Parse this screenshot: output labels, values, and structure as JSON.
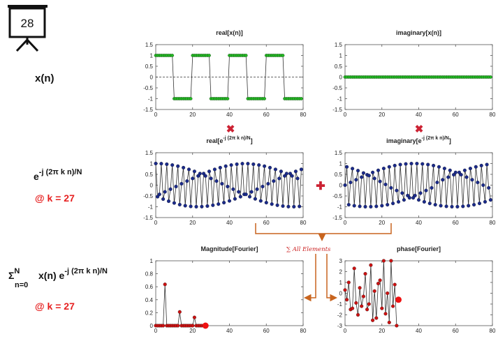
{
  "slide_number": "28",
  "labels": {
    "xn": "x(n)",
    "kernel_base": "e",
    "kernel_exp": "-j (2π k n)/N",
    "k_value": "@ k = 27",
    "sum_symbol": "Σ",
    "sum_sup": "N",
    "sum_sub": "n=0",
    "sum_body": "x(n) e",
    "sum_exp": "-j (2π k n)/N",
    "k_value2": "@ k = 27"
  },
  "operators": {
    "multiply": "✖",
    "add": "✚",
    "sum_note": "∑ All Elements"
  },
  "colors": {
    "green_marker": "#22bb22",
    "blue_marker": "#1a2a8a",
    "red_marker": "#cc1111",
    "red_text": "#e62020",
    "orange_arrow": "#c8641e",
    "line": "#333333"
  },
  "chart_data": [
    {
      "id": "real_x",
      "type": "line",
      "title": "real[x(n)]",
      "xlim": [
        0,
        80
      ],
      "ylim": [
        -1.5,
        1.5
      ],
      "xticks": [
        "0",
        "20",
        "40",
        "60",
        "80"
      ],
      "yticks": [
        "-1.5",
        "-1",
        "-0.5",
        "0",
        "0.5",
        "1",
        "1.5"
      ],
      "dashed_zero": true,
      "x_start": 0,
      "x_end": 79,
      "values": [
        1,
        1,
        1,
        1,
        1,
        1,
        1,
        1,
        1,
        1,
        -1,
        -1,
        -1,
        -1,
        -1,
        -1,
        -1,
        -1,
        -1,
        -1,
        1,
        1,
        1,
        1,
        1,
        1,
        1,
        1,
        1,
        1,
        -1,
        -1,
        -1,
        -1,
        -1,
        -1,
        -1,
        -1,
        -1,
        -1,
        1,
        1,
        1,
        1,
        1,
        1,
        1,
        1,
        1,
        1,
        -1,
        -1,
        -1,
        -1,
        -1,
        -1,
        -1,
        -1,
        -1,
        -1,
        1,
        1,
        1,
        1,
        1,
        1,
        1,
        1,
        1,
        1,
        -1,
        -1,
        -1,
        -1,
        -1,
        -1,
        -1,
        -1,
        -1,
        -1
      ]
    },
    {
      "id": "imag_x",
      "type": "line",
      "title": "imaginary[x(n)]",
      "xlim": [
        0,
        80
      ],
      "ylim": [
        -1.5,
        1.5
      ],
      "xticks": [
        "0",
        "20",
        "40",
        "60",
        "80"
      ],
      "yticks": [
        "-1.5",
        "-1",
        "-0.5",
        "0",
        "0.5",
        "1",
        "1.5"
      ],
      "dashed_zero": true,
      "x_start": 0,
      "x_end": 79,
      "values": [
        0,
        0,
        0,
        0,
        0,
        0,
        0,
        0,
        0,
        0,
        0,
        0,
        0,
        0,
        0,
        0,
        0,
        0,
        0,
        0,
        0,
        0,
        0,
        0,
        0,
        0,
        0,
        0,
        0,
        0,
        0,
        0,
        0,
        0,
        0,
        0,
        0,
        0,
        0,
        0,
        0,
        0,
        0,
        0,
        0,
        0,
        0,
        0,
        0,
        0,
        0,
        0,
        0,
        0,
        0,
        0,
        0,
        0,
        0,
        0,
        0,
        0,
        0,
        0,
        0,
        0,
        0,
        0,
        0,
        0,
        0,
        0,
        0,
        0,
        0,
        0,
        0,
        0,
        0,
        0
      ]
    },
    {
      "id": "real_e",
      "type": "line",
      "title": "real[e^{-j (2π k n)/N}]",
      "title_base": "real[e",
      "title_sup": "-j (2π k n)/N",
      "title_end": "]",
      "xlim": [
        0,
        80
      ],
      "ylim": [
        -1.5,
        1.5
      ],
      "xticks": [
        "0",
        "20",
        "40",
        "60",
        "80"
      ],
      "yticks": [
        "-1.5",
        "-1",
        "-0.5",
        "0",
        "0.5",
        "1",
        "1.5"
      ],
      "dashed_zero": false,
      "x_start": 0,
      "x_end": 79,
      "values": [
        1.0,
        -0.536,
        -0.426,
        0.992,
        -0.644,
        -0.309,
        0.969,
        -0.743,
        -0.187,
        0.93,
        -0.827,
        -0.063,
        0.876,
        -0.899,
        0.063,
        0.809,
        -0.951,
        0.187,
        0.729,
        -0.985,
        0.309,
        0.637,
        -0.998,
        0.426,
        0.536,
        -0.992,
        0.536,
        0.426,
        -0.969,
        0.637,
        0.309,
        -0.93,
        0.729,
        0.187,
        -0.876,
        0.809,
        0.063,
        -0.809,
        0.876,
        -0.063,
        -0.729,
        0.93,
        -0.187,
        -0.637,
        0.969,
        -0.309,
        -0.536,
        0.992,
        -0.426,
        -0.426,
        0.992,
        -0.536,
        -0.309,
        0.969,
        -0.637,
        -0.187,
        0.93,
        -0.729,
        -0.063,
        0.876,
        -0.809,
        0.063,
        0.809,
        -0.876,
        0.187,
        0.729,
        -0.93,
        0.309,
        0.637,
        -0.969,
        0.426,
        0.536,
        -0.992,
        0.536,
        0.426,
        -0.998,
        0.637,
        0.309,
        -0.985,
        0.729
      ]
    },
    {
      "id": "imag_e",
      "type": "line",
      "title": "imaginary[e^{-j (2π k n)/N}]",
      "title_base": "imaginary[e",
      "title_sup": "-j (2π k n)/N",
      "title_end": "]",
      "xlim": [
        0,
        80
      ],
      "ylim": [
        -1.5,
        1.5
      ],
      "xticks": [
        "0",
        "20",
        "40",
        "60",
        "80"
      ],
      "yticks": [
        "-1.5",
        "-1",
        "-0.5",
        "0",
        "0.5",
        "1",
        "1.5"
      ],
      "dashed_zero": false,
      "x_start": 0,
      "x_end": 79,
      "values": [
        0.0,
        0.844,
        -0.905,
        0.125,
        0.765,
        -0.951,
        0.249,
        0.67,
        -0.982,
        0.368,
        0.562,
        -0.998,
        0.482,
        0.441,
        -0.998,
        0.588,
        0.309,
        -0.982,
        0.685,
        0.171,
        -0.951,
        0.771,
        0.031,
        -0.905,
        0.844,
        -0.125,
        -0.844,
        0.905,
        -0.249,
        -0.771,
        0.951,
        -0.368,
        -0.685,
        0.982,
        -0.482,
        -0.588,
        0.998,
        -0.588,
        -0.482,
        0.998,
        -0.685,
        -0.368,
        0.982,
        -0.771,
        -0.249,
        0.951,
        -0.844,
        -0.125,
        0.905,
        -0.905,
        0.125,
        0.844,
        -0.951,
        0.249,
        0.771,
        -0.982,
        0.368,
        0.685,
        -0.998,
        0.482,
        0.588,
        -0.998,
        0.588,
        0.482,
        -0.982,
        0.685,
        0.368,
        -0.951,
        0.771,
        0.249,
        -0.905,
        0.844,
        0.125,
        -0.844,
        0.905,
        0.0,
        -0.771,
        0.951,
        -0.125,
        -0.685
      ]
    },
    {
      "id": "mag",
      "type": "line",
      "title": "Magnitude[Fourier]",
      "xlim": [
        0,
        80
      ],
      "ylim": [
        0,
        1
      ],
      "xticks": [
        "0",
        "20",
        "40",
        "60",
        "80"
      ],
      "yticks": [
        "0",
        "0.2",
        "0.4",
        "0.6",
        "0.8",
        "1"
      ],
      "dashed_zero": false,
      "x_start": 0,
      "x_end": 27,
      "values": [
        0,
        0,
        0,
        0,
        0,
        0.637,
        0,
        0,
        0,
        0,
        0,
        0,
        0,
        0.212,
        0,
        0,
        0,
        0,
        0,
        0,
        0,
        0.127,
        0,
        0,
        0,
        0,
        0,
        0
      ],
      "highlight_index": 27
    },
    {
      "id": "phase",
      "type": "line",
      "title": "phase[Fourier]",
      "xlim": [
        0,
        80
      ],
      "ylim": [
        -3,
        3
      ],
      "xticks": [
        "0",
        "20",
        "40",
        "60",
        "80"
      ],
      "yticks": [
        "-3",
        "-2",
        "-1",
        "0",
        "1",
        "2",
        "3"
      ],
      "dashed_zero": false,
      "x_start": 0,
      "x_end": 28,
      "values": [
        0.3,
        -0.6,
        1.0,
        -1.5,
        -1.4,
        2.3,
        -0.9,
        -2.0,
        0.5,
        -1.2,
        -0.3,
        1.8,
        -1.5,
        -1.0,
        2.6,
        -2.5,
        0.2,
        -2.3,
        0.9,
        1.2,
        -1.4,
        3.0,
        -1.9,
        0.0,
        -2.7,
        3.0,
        -1.2,
        0.8,
        -3.0
      ],
      "highlight_x": 29,
      "highlight_y": -0.6
    }
  ]
}
